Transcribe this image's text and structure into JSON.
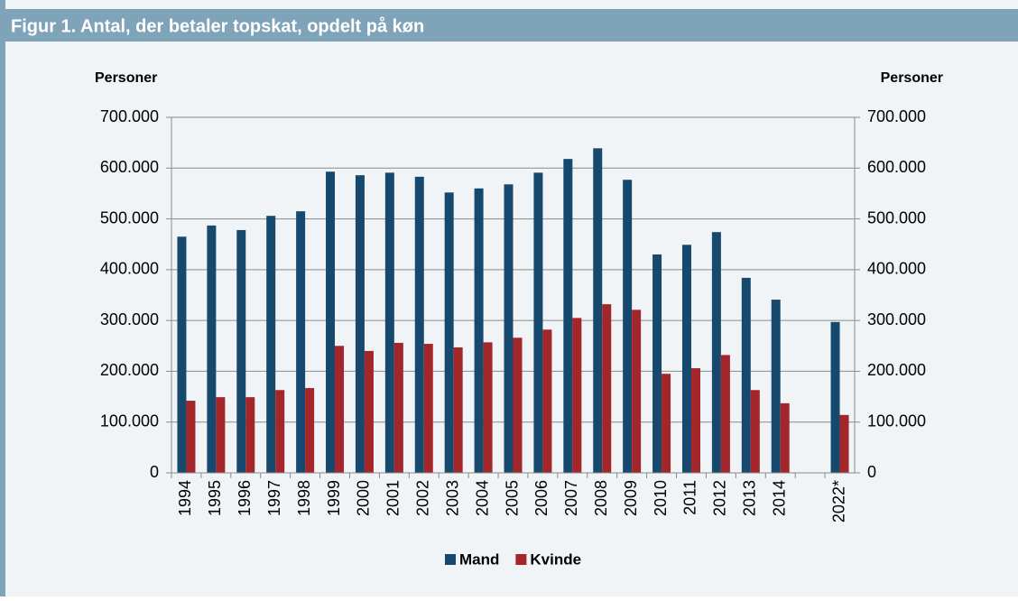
{
  "chart_data": {
    "type": "bar",
    "title": "Figur 1. Antal, der betaler topskat, opdelt på køn",
    "y_label": "Personer",
    "y2_label": "Personer",
    "categories": [
      "1994",
      "1995",
      "1996",
      "1997",
      "1998",
      "1999",
      "2000",
      "2001",
      "2002",
      "2003",
      "2004",
      "2005",
      "2006",
      "2007",
      "2008",
      "2009",
      "2010",
      "2011",
      "2012",
      "2013",
      "2014",
      null,
      "2022*"
    ],
    "series": [
      {
        "name": "Mand",
        "color": "#17496e",
        "values": [
          465000,
          487000,
          478000,
          506000,
          515000,
          593000,
          586000,
          591000,
          583000,
          552000,
          560000,
          568000,
          591000,
          618000,
          639000,
          577000,
          430000,
          449000,
          474000,
          384000,
          341000,
          null,
          297000
        ]
      },
      {
        "name": "Kvinde",
        "color": "#a3262b",
        "values": [
          142000,
          149000,
          149000,
          163000,
          167000,
          250000,
          240000,
          256000,
          254000,
          247000,
          257000,
          266000,
          282000,
          305000,
          332000,
          321000,
          195000,
          206000,
          232000,
          163000,
          137000,
          null,
          114000
        ]
      }
    ],
    "ylim": [
      0,
      700000
    ],
    "yticks": [
      0,
      {
        "value": 100000,
        "label": "100.000"
      },
      {
        "value": 200000,
        "label": "200.000"
      },
      {
        "value": 300000,
        "label": "300.000"
      },
      {
        "value": 400000,
        "label": "400.000"
      },
      {
        "value": 500000,
        "label": "500.000"
      },
      {
        "value": 600000,
        "label": "600.000"
      },
      {
        "value": 700000,
        "label": "700.000"
      }
    ],
    "y2lim": [
      0,
      700000
    ],
    "y2ticks": [
      0,
      {
        "value": 100000,
        "label": "100.000"
      },
      {
        "value": 200000,
        "label": "200.000"
      },
      {
        "value": 300000,
        "label": "300.000"
      },
      {
        "value": 400000,
        "label": "400.000"
      },
      {
        "value": 500000,
        "label": "500.000"
      },
      {
        "value": 600000,
        "label": "600.000"
      },
      {
        "value": 700000,
        "label": "700.000"
      }
    ],
    "grid": true,
    "legend": "bottom"
  }
}
